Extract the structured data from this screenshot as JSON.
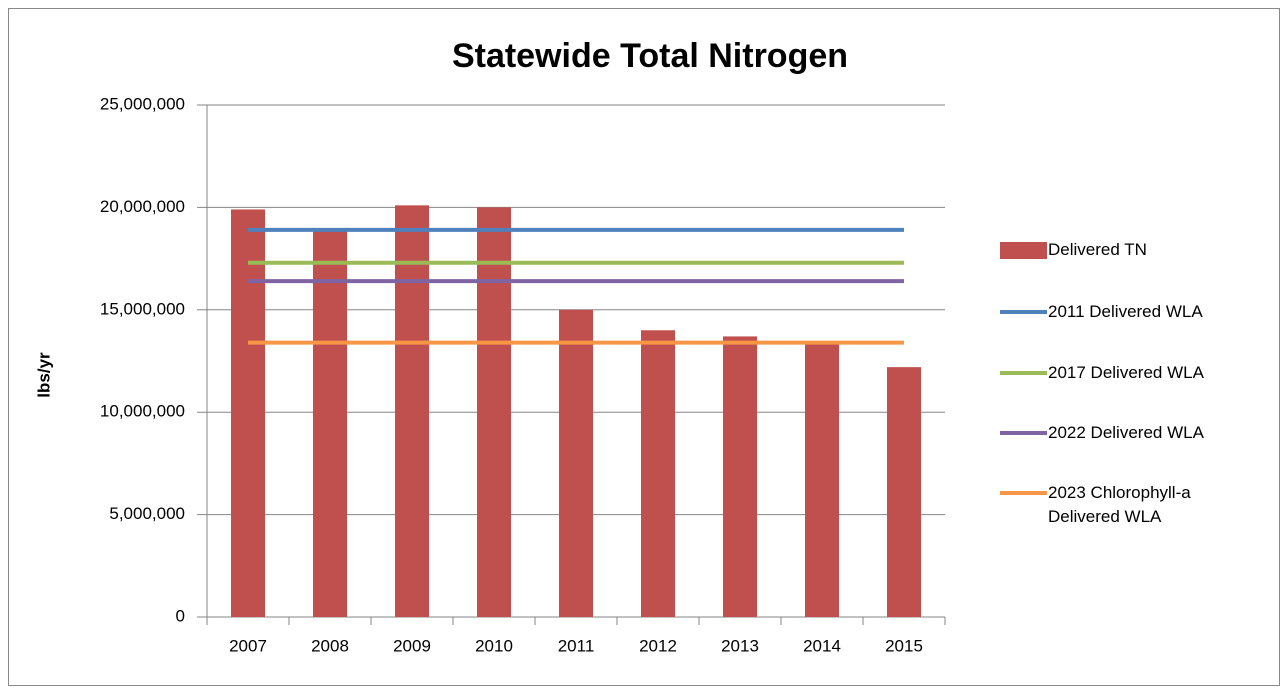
{
  "chart_data": {
    "type": "bar",
    "title": "Statewide  Total Nitrogen",
    "y_label": "lbs/yr",
    "categories": [
      "2007",
      "2008",
      "2009",
      "2010",
      "2011",
      "2012",
      "2013",
      "2014",
      "2015"
    ],
    "series": [
      {
        "name": "Delivered TN",
        "type": "bar",
        "color": "#c0504d",
        "values": [
          19900000,
          18900000,
          20100000,
          20000000,
          15000000,
          14000000,
          13700000,
          13400000,
          12200000
        ]
      },
      {
        "name": "2011 Delivered WLA",
        "type": "line",
        "color": "#4f81bd",
        "values": [
          18900000,
          18900000,
          18900000,
          18900000,
          18900000,
          18900000,
          18900000,
          18900000,
          18900000
        ]
      },
      {
        "name": "2017 Delivered WLA",
        "type": "line",
        "color": "#9bbb59",
        "values": [
          17300000,
          17300000,
          17300000,
          17300000,
          17300000,
          17300000,
          17300000,
          17300000,
          17300000
        ]
      },
      {
        "name": "2022 Delivered WLA",
        "type": "line",
        "color": "#8064a2",
        "values": [
          16400000,
          16400000,
          16400000,
          16400000,
          16400000,
          16400000,
          16400000,
          16400000,
          16400000
        ]
      },
      {
        "name": "2023 Chlorophyll-a Delivered WLA",
        "type": "line",
        "color": "#f79646",
        "values": [
          13400000,
          13400000,
          13400000,
          13400000,
          13400000,
          13400000,
          13400000,
          13400000,
          13400000
        ]
      }
    ],
    "ylim": [
      0,
      25000000
    ],
    "yticks": [
      0,
      {
        "value": 5000000,
        "label": "5,000,000"
      },
      {
        "value": 10000000,
        "label": "10,000,000"
      },
      {
        "value": 15000000,
        "label": "15,000,000"
      },
      {
        "value": 20000000,
        "label": "20,000,000"
      },
      {
        "value": 25000000,
        "label": "25,000,000"
      }
    ],
    "grid": true,
    "legend": "right"
  }
}
